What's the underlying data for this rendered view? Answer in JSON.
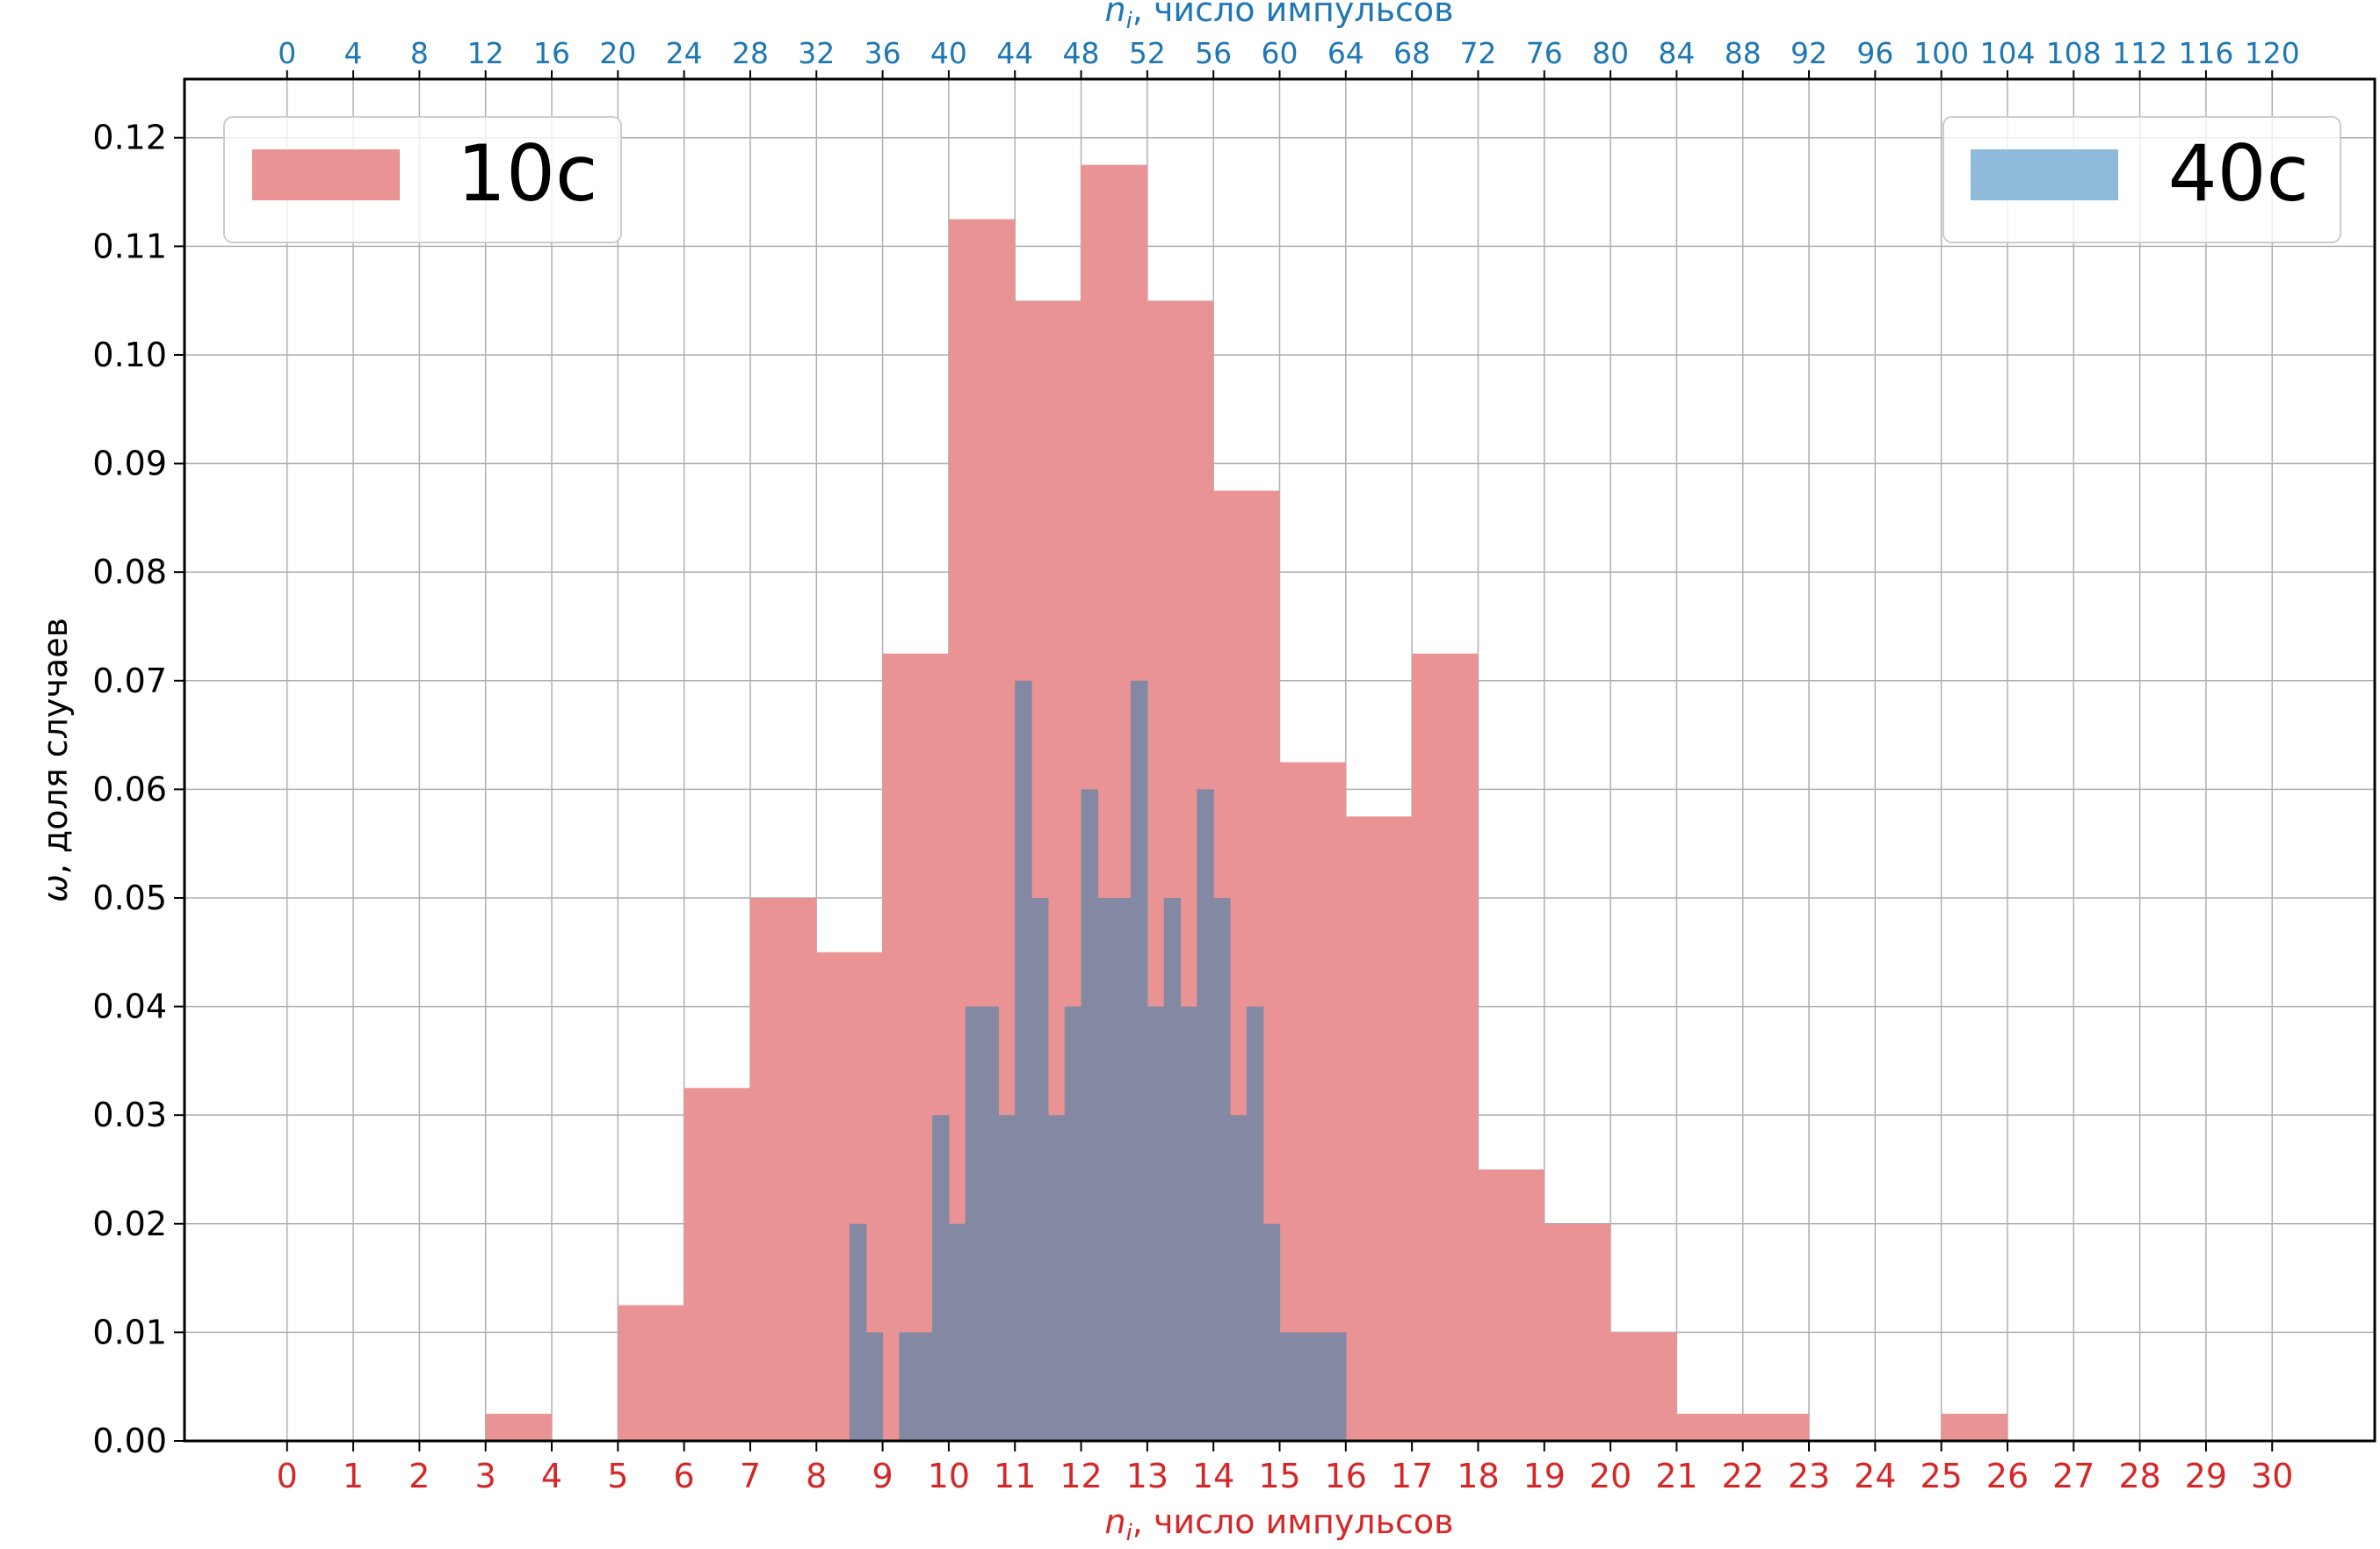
{
  "chart_data": {
    "type": "bar",
    "title": "",
    "xlabel_bottom": "n_i, число импульсов",
    "xlabel_top": "n_i, число импульсов",
    "ylabel": "ω, доля случаев",
    "xlim_bottom": [
      -1.55,
      31.55
    ],
    "ylim": [
      0,
      0.1254
    ],
    "grid": true,
    "x_ticks_bottom": [
      0,
      1,
      2,
      3,
      4,
      5,
      6,
      7,
      8,
      9,
      10,
      11,
      12,
      13,
      14,
      15,
      16,
      17,
      18,
      19,
      20,
      21,
      22,
      23,
      24,
      25,
      26,
      27,
      28,
      29,
      30
    ],
    "x_ticks_top": [
      0,
      4,
      8,
      12,
      16,
      20,
      24,
      28,
      32,
      36,
      40,
      44,
      48,
      52,
      56,
      60,
      64,
      68,
      72,
      76,
      80,
      84,
      88,
      92,
      96,
      100,
      104,
      108,
      112,
      116,
      120
    ],
    "y_ticks": [
      "0.00",
      "0.01",
      "0.02",
      "0.03",
      "0.04",
      "0.05",
      "0.06",
      "0.07",
      "0.08",
      "0.09",
      "0.10",
      "0.11",
      "0.12"
    ],
    "colors": {
      "series_10s": "#e99394",
      "series_40s": "#8389a3",
      "legend_40s_patch": "#8fbbdb",
      "axis_bottom": "#d62728",
      "axis_top": "#1f77b4",
      "grid": "#b0b0b0"
    },
    "series": [
      {
        "name": "10с",
        "legend_position": "top-left",
        "bin_width": 1,
        "bins": [
          {
            "x": 3,
            "value": 0.0025
          },
          {
            "x": 5,
            "value": 0.0125
          },
          {
            "x": 6,
            "value": 0.0325
          },
          {
            "x": 7,
            "value": 0.05
          },
          {
            "x": 8,
            "value": 0.045
          },
          {
            "x": 9,
            "value": 0.0725
          },
          {
            "x": 10,
            "value": 0.1125
          },
          {
            "x": 11,
            "value": 0.105
          },
          {
            "x": 12,
            "value": 0.1175
          },
          {
            "x": 13,
            "value": 0.105
          },
          {
            "x": 14,
            "value": 0.0875
          },
          {
            "x": 15,
            "value": 0.0625
          },
          {
            "x": 16,
            "value": 0.0575
          },
          {
            "x": 17,
            "value": 0.0725
          },
          {
            "x": 18,
            "value": 0.025
          },
          {
            "x": 19,
            "value": 0.02
          },
          {
            "x": 20,
            "value": 0.01
          },
          {
            "x": 21,
            "value": 0.0025
          },
          {
            "x": 22,
            "value": 0.0025
          },
          {
            "x": 25,
            "value": 0.0025
          }
        ]
      },
      {
        "name": "40с",
        "legend_position": "top-right",
        "bin_width": 0.25,
        "bins": [
          {
            "x": 8.5,
            "value": 0.02
          },
          {
            "x": 8.75,
            "value": 0.01
          },
          {
            "x": 9.25,
            "value": 0.01
          },
          {
            "x": 9.5,
            "value": 0.01
          },
          {
            "x": 9.75,
            "value": 0.03
          },
          {
            "x": 10.0,
            "value": 0.02
          },
          {
            "x": 10.25,
            "value": 0.04
          },
          {
            "x": 10.5,
            "value": 0.04
          },
          {
            "x": 10.75,
            "value": 0.03
          },
          {
            "x": 11.0,
            "value": 0.07
          },
          {
            "x": 11.25,
            "value": 0.05
          },
          {
            "x": 11.5,
            "value": 0.03
          },
          {
            "x": 11.75,
            "value": 0.04
          },
          {
            "x": 12.0,
            "value": 0.06
          },
          {
            "x": 12.25,
            "value": 0.05
          },
          {
            "x": 12.5,
            "value": 0.05
          },
          {
            "x": 12.75,
            "value": 0.07
          },
          {
            "x": 13.0,
            "value": 0.04
          },
          {
            "x": 13.25,
            "value": 0.05
          },
          {
            "x": 13.5,
            "value": 0.04
          },
          {
            "x": 13.75,
            "value": 0.06
          },
          {
            "x": 14.0,
            "value": 0.05
          },
          {
            "x": 14.25,
            "value": 0.03
          },
          {
            "x": 14.5,
            "value": 0.04
          },
          {
            "x": 14.75,
            "value": 0.02
          },
          {
            "x": 15.0,
            "value": 0.01
          },
          {
            "x": 15.25,
            "value": 0.01
          },
          {
            "x": 15.5,
            "value": 0.01
          },
          {
            "x": 15.75,
            "value": 0.01
          }
        ]
      }
    ]
  }
}
